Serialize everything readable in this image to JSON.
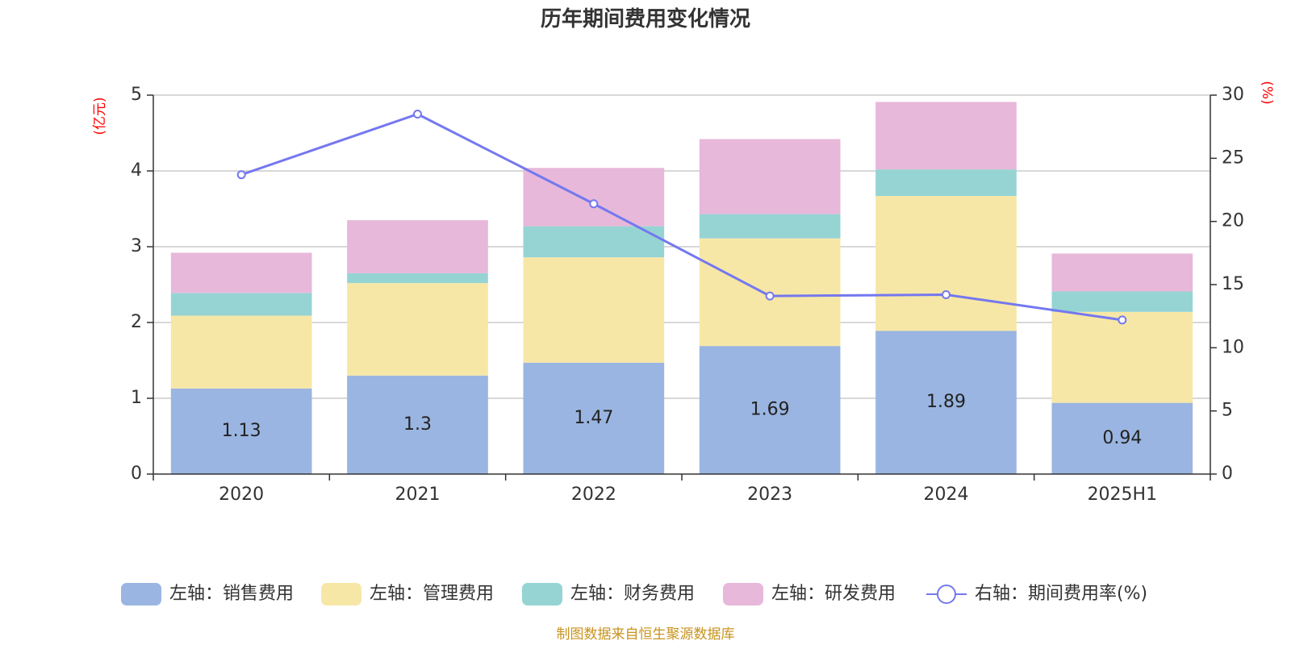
{
  "chart_data": {
    "type": "bar",
    "title": "历年期间费用变化情况",
    "categories": [
      "2020",
      "2021",
      "2022",
      "2023",
      "2024",
      "2025H1"
    ],
    "series": [
      {
        "name": "左轴：销售费用",
        "kind": "bar",
        "axis": "left",
        "color": "#9ab5e1",
        "values": [
          1.13,
          1.3,
          1.47,
          1.69,
          1.89,
          0.94
        ],
        "labels": [
          "1.13",
          "1.3",
          "1.47",
          "1.69",
          "1.89",
          "0.94"
        ]
      },
      {
        "name": "左轴：管理费用",
        "kind": "bar",
        "axis": "left",
        "color": "#f7e7a6",
        "values": [
          0.96,
          1.22,
          1.39,
          1.42,
          1.78,
          1.2
        ]
      },
      {
        "name": "左轴：财务费用",
        "kind": "bar",
        "axis": "left",
        "color": "#96d4d4",
        "values": [
          0.3,
          0.13,
          0.41,
          0.32,
          0.35,
          0.27
        ]
      },
      {
        "name": "左轴：研发费用",
        "kind": "bar",
        "axis": "left",
        "color": "#e7b8d9",
        "values": [
          0.53,
          0.7,
          0.77,
          0.99,
          0.89,
          0.5
        ]
      },
      {
        "name": "右轴：期间费用率(%)",
        "kind": "line",
        "axis": "right",
        "color": "#7478ef",
        "values": [
          23.7,
          28.5,
          21.4,
          14.1,
          14.2,
          12.2
        ]
      }
    ],
    "left_axis": {
      "unit": "(亿元)",
      "ylim": [
        0,
        5
      ],
      "ticks": [
        "0",
        "1",
        "2",
        "3",
        "4",
        "5"
      ]
    },
    "right_axis": {
      "unit": "(%)",
      "ylim": [
        0,
        30
      ],
      "ticks": [
        "0",
        "5",
        "10",
        "15",
        "20",
        "25",
        "30"
      ]
    },
    "grid": true,
    "legend_position": "bottom",
    "source": "制图数据来自恒生聚源数据库"
  }
}
